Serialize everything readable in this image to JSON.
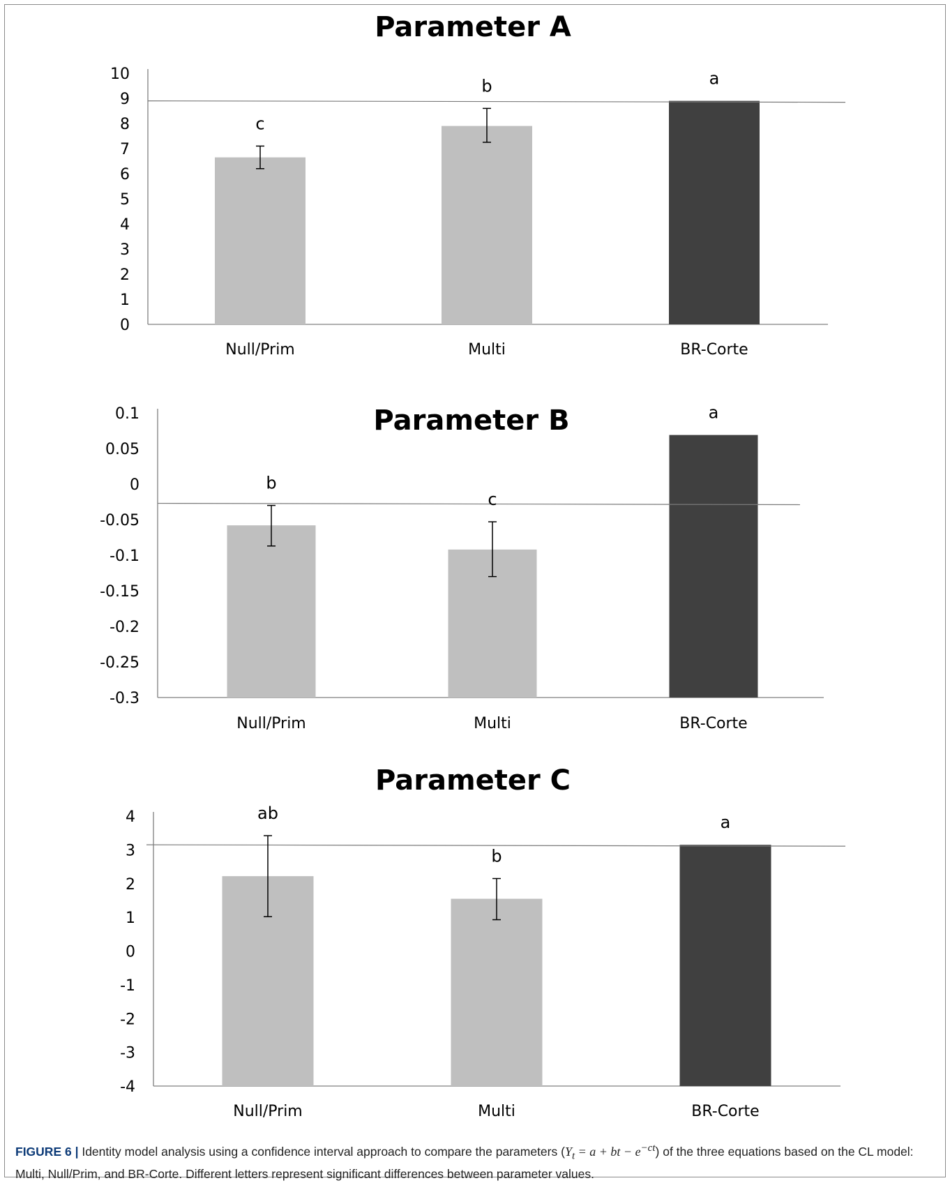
{
  "chart_data": [
    {
      "type": "bar",
      "title": "Parameter A",
      "categories": [
        "Null/Prim",
        "Multi",
        "BR-Corte"
      ],
      "values": [
        6.65,
        7.9,
        8.9
      ],
      "error_low": [
        6.2,
        7.25,
        null
      ],
      "error_high": [
        7.1,
        8.6,
        null
      ],
      "significance": [
        "c",
        "b",
        "a"
      ],
      "reference_line": 8.9,
      "ylim": [
        0,
        10
      ],
      "yticks": [
        0,
        1,
        2,
        3,
        4,
        5,
        6,
        7,
        8,
        9,
        10
      ],
      "ytick_labels": [
        "0",
        "1",
        "2",
        "3",
        "4",
        "5",
        "6",
        "7",
        "8",
        "9",
        "10"
      ],
      "bar_colors": [
        "#bfbfbf",
        "#bfbfbf",
        "#404040"
      ],
      "grid": false,
      "legend": "none"
    },
    {
      "type": "bar",
      "title": "Parameter B",
      "categories": [
        "Null/Prim",
        "Multi",
        "BR-Corte"
      ],
      "values": [
        -0.058,
        -0.092,
        0.069
      ],
      "error_low": [
        -0.087,
        -0.13,
        null
      ],
      "error_high": [
        -0.03,
        -0.053,
        null
      ],
      "significance": [
        "b",
        "c",
        "a"
      ],
      "reference_line": -0.027,
      "ylim": [
        -0.3,
        0.1
      ],
      "yticks": [
        -0.3,
        -0.25,
        -0.2,
        -0.15,
        -0.1,
        -0.05,
        0,
        0.05,
        0.1
      ],
      "ytick_labels": [
        "-0.3",
        "-0.25",
        "-0.2",
        "-0.15",
        "-0.1",
        "-0.05",
        "0",
        "0.05",
        "0.1"
      ],
      "bar_colors": [
        "#bfbfbf",
        "#bfbfbf",
        "#404040"
      ],
      "grid": false,
      "legend": "none"
    },
    {
      "type": "bar",
      "title": "Parameter C",
      "categories": [
        "Null/Prim",
        "Multi",
        "BR-Corte"
      ],
      "values": [
        2.22,
        1.55,
        3.15
      ],
      "error_low": [
        1.02,
        0.93,
        null
      ],
      "error_high": [
        3.42,
        2.15,
        null
      ],
      "significance": [
        "ab",
        "b",
        "a"
      ],
      "reference_line": 3.15,
      "ylim": [
        -4,
        4
      ],
      "yticks": [
        -4,
        -3,
        -2,
        -1,
        0,
        1,
        2,
        3,
        4
      ],
      "ytick_labels": [
        "-4",
        "-3",
        "-2",
        "-1",
        "0",
        "1",
        "2",
        "3",
        "4"
      ],
      "bar_colors": [
        "#bfbfbf",
        "#bfbfbf",
        "#404040"
      ],
      "grid": false,
      "legend": "none"
    }
  ],
  "caption": {
    "label": "FIGURE 6 |",
    "text_before": " Identity model analysis using a confidence interval approach to compare the parameters (",
    "equation": "Y",
    "equation_sub": "t",
    "equation_rest": " = a + bt − e",
    "equation_sup": "−ct",
    "text_after": ") of the three equations based on the CL model: Multi, Null/Prim, and BR-Corte. Different letters represent significant differences between parameter values."
  }
}
